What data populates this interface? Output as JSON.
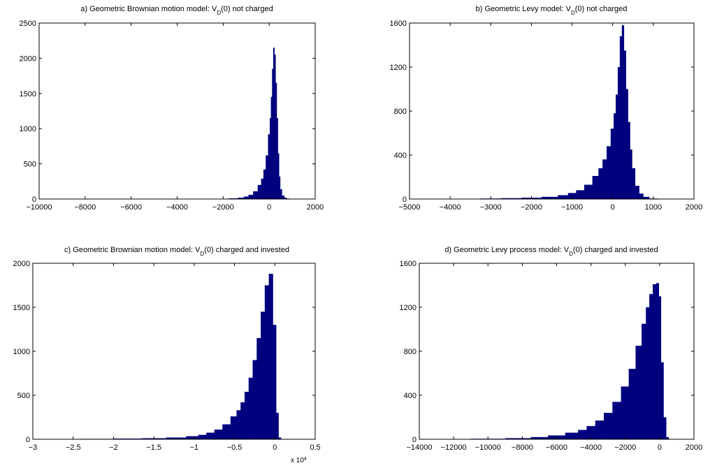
{
  "colors": {
    "bar": "#00007f",
    "axis": "#000000",
    "background": "#ffffff"
  },
  "chart_data": [
    {
      "type": "bar",
      "title_main": "a) Geometric Brownian motion model: V",
      "title_sub": "D",
      "title_rest": "(0) not charged",
      "xlim": [
        -10000,
        2000
      ],
      "ylim": [
        0,
        2500
      ],
      "xticks": [
        -10000,
        -8000,
        -6000,
        -4000,
        -2000,
        0,
        2000
      ],
      "yticks": [
        0,
        500,
        1000,
        1500,
        2000,
        2500
      ],
      "xtick_labels": [
        "−10000",
        "−8000",
        "−6000",
        "−4000",
        "−2000",
        "0",
        "2000"
      ],
      "ytick_labels": [
        "0",
        "500",
        "1000",
        "1500",
        "2000",
        "2500"
      ],
      "x_multiplier": "",
      "x": [
        -3000,
        -2500,
        -2000,
        -1500,
        -1200,
        -1000,
        -800,
        -600,
        -400,
        -300,
        -200,
        -100,
        0,
        50,
        100,
        150,
        200,
        250,
        300,
        350,
        400,
        450,
        500,
        600,
        700,
        800,
        900
      ],
      "y": [
        2,
        3,
        5,
        10,
        20,
        35,
        60,
        110,
        200,
        290,
        420,
        620,
        920,
        1150,
        1450,
        1850,
        2150,
        2050,
        1650,
        1150,
        650,
        320,
        140,
        50,
        20,
        8,
        3
      ]
    },
    {
      "type": "bar",
      "title_main": "b) Geometric Levy model: V",
      "title_sub": "D",
      "title_rest": "(0) not charged",
      "xlim": [
        -5000,
        2000
      ],
      "ylim": [
        0,
        1600
      ],
      "xticks": [
        -5000,
        -4000,
        -3000,
        -2000,
        -1000,
        0,
        1000,
        2000
      ],
      "yticks": [
        0,
        400,
        800,
        1200,
        1600
      ],
      "xtick_labels": [
        "−5000",
        "−4000",
        "−3000",
        "−2000",
        "−1000",
        "0",
        "1000",
        "2000"
      ],
      "ytick_labels": [
        "0",
        "400",
        "800",
        "1200",
        "1600"
      ],
      "x_multiplier": "",
      "x": [
        -3000,
        -2500,
        -2000,
        -1500,
        -1200,
        -1000,
        -800,
        -600,
        -400,
        -300,
        -200,
        -100,
        0,
        50,
        100,
        150,
        200,
        250,
        300,
        350,
        400,
        450,
        500,
        600,
        700,
        800,
        1000
      ],
      "y": [
        5,
        8,
        12,
        20,
        35,
        55,
        80,
        130,
        210,
        280,
        360,
        480,
        640,
        780,
        950,
        1200,
        1480,
        1580,
        1350,
        1000,
        700,
        450,
        280,
        120,
        50,
        20,
        5
      ]
    },
    {
      "type": "bar",
      "title_main": "c) Geometric Brownian motion model: V",
      "title_sub": "D",
      "title_rest": "(0)  charged and invested",
      "xlim": [
        -3,
        0.5
      ],
      "ylim": [
        0,
        2000
      ],
      "xticks": [
        -3,
        -2.5,
        -2,
        -1.5,
        -1,
        -0.5,
        0,
        0.5
      ],
      "yticks": [
        0,
        500,
        1000,
        1500,
        2000
      ],
      "xtick_labels": [
        "−3",
        "−2.5",
        "−2",
        "−1.5",
        "−1",
        "−0.5",
        "0",
        "0.5"
      ],
      "ytick_labels": [
        "0",
        "500",
        "1000",
        "1500",
        "2000"
      ],
      "x_multiplier": "x 10",
      "x_multiplier_exp": "4",
      "x": [
        -2.6,
        -2.2,
        -1.8,
        -1.5,
        -1.2,
        -1.0,
        -0.9,
        -0.8,
        -0.7,
        -0.6,
        -0.5,
        -0.45,
        -0.4,
        -0.35,
        -0.3,
        -0.25,
        -0.2,
        -0.15,
        -0.1,
        -0.05,
        0,
        0.03,
        0.06
      ],
      "y": [
        3,
        5,
        8,
        12,
        20,
        35,
        50,
        75,
        110,
        170,
        260,
        330,
        420,
        540,
        700,
        900,
        1150,
        1450,
        1750,
        1880,
        1300,
        300,
        20
      ]
    },
    {
      "type": "bar",
      "title_main": "d) Geometric Levy process model: V",
      "title_sub": "D",
      "title_rest": "(0) charged and invested",
      "xlim": [
        -14000,
        2000
      ],
      "ylim": [
        0,
        1600
      ],
      "xticks": [
        -14000,
        -12000,
        -10000,
        -8000,
        -6000,
        -4000,
        -2000,
        0,
        2000
      ],
      "yticks": [
        0,
        400,
        800,
        1200,
        1600
      ],
      "xtick_labels": [
        "−14000",
        "−12000",
        "−10000",
        "−8000",
        "−6000",
        "−4000",
        "−2000",
        "0",
        "2000"
      ],
      "ytick_labels": [
        "0",
        "400",
        "800",
        "1200",
        "1600"
      ],
      "x_multiplier": "",
      "x": [
        -12000,
        -10000,
        -8000,
        -7000,
        -6000,
        -5000,
        -4500,
        -4000,
        -3500,
        -3000,
        -2500,
        -2000,
        -1600,
        -1200,
        -900,
        -700,
        -500,
        -300,
        -100,
        0,
        150,
        300,
        450
      ],
      "y": [
        2,
        5,
        10,
        20,
        35,
        60,
        85,
        120,
        170,
        240,
        340,
        480,
        640,
        850,
        1050,
        1200,
        1320,
        1410,
        1420,
        1300,
        700,
        200,
        20
      ]
    }
  ]
}
